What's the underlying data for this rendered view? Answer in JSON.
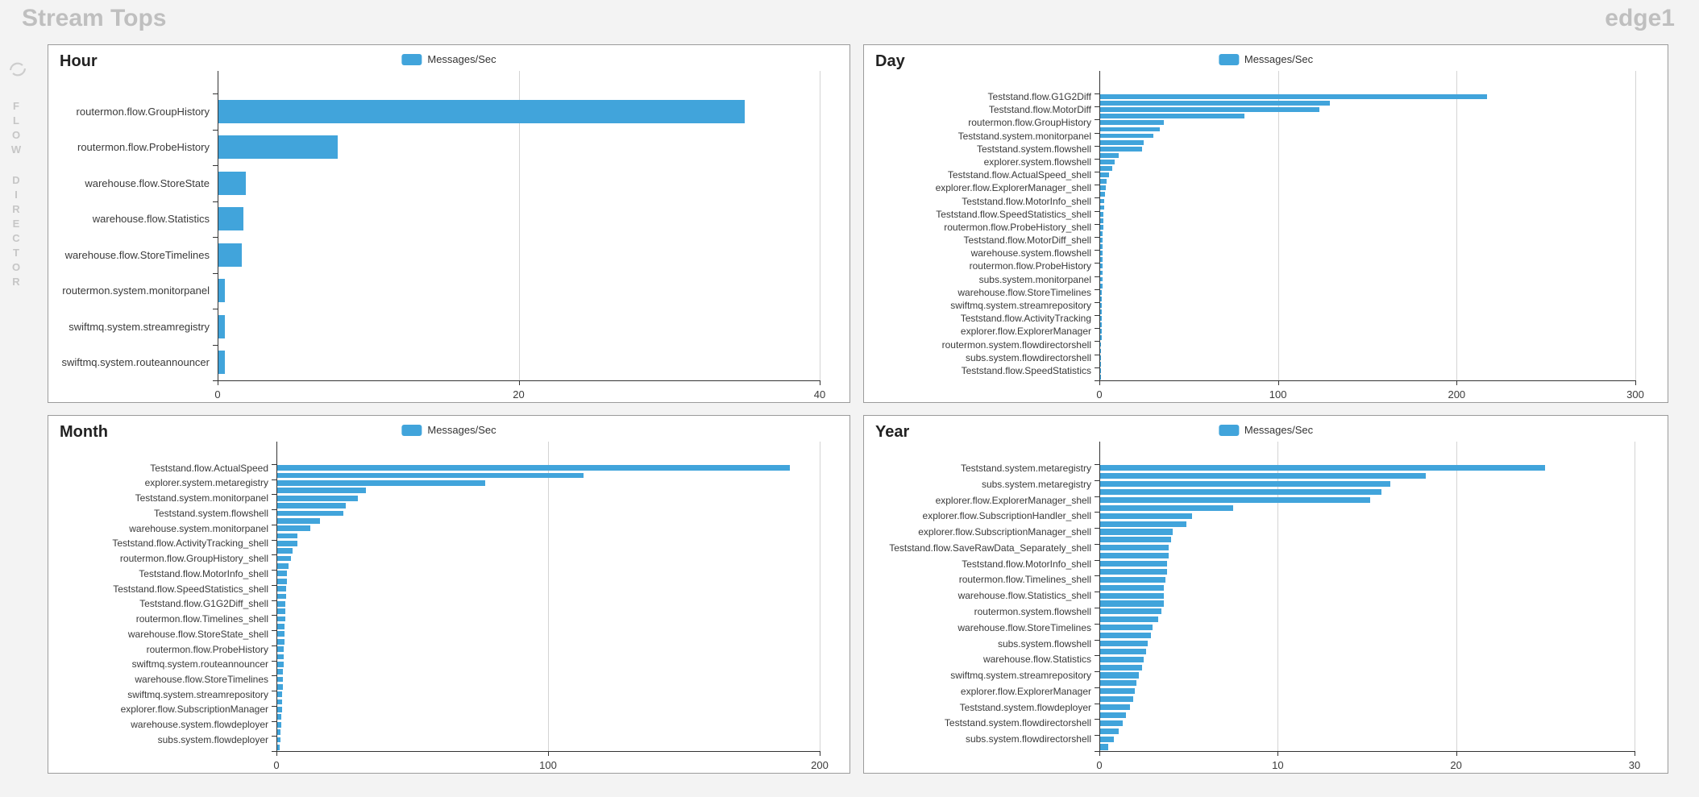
{
  "page": {
    "title": "Stream Tops",
    "node": "edge1",
    "sidebar": {
      "word_top": "FLOW",
      "word_bottom": "DIRECTOR"
    },
    "colors": {
      "bar_blue": "#41A4DB",
      "page_background": "#f3f3f3",
      "panel_border": "#9b9b9b",
      "axis": "#333333",
      "gridline": "#d4d4d4",
      "muted_title_text": "#bfbfbf"
    }
  },
  "chart_data": [
    {
      "id": "hour",
      "type": "bar",
      "orientation": "horizontal",
      "title": "Hour",
      "legend": "Messages/Sec",
      "xlabel": "",
      "ylabel": "",
      "x_ticks": [
        0,
        20,
        40
      ],
      "xlim": [
        0,
        40
      ],
      "grid": true,
      "legend_position": "top-center",
      "bars_per_label": 1,
      "categories": [
        "routermon.flow.GroupHistory",
        "routermon.flow.ProbeHistory",
        "warehouse.flow.StoreState",
        "warehouse.flow.Statistics",
        "warehouse.flow.StoreTimelines",
        "routermon.system.monitorpanel",
        "swiftmq.system.streamregistry",
        "swiftmq.system.routeannouncer"
      ],
      "values": [
        35,
        8,
        1.9,
        1.7,
        1.6,
        0.5,
        0.5,
        0.5
      ]
    },
    {
      "id": "day",
      "type": "bar",
      "orientation": "horizontal",
      "title": "Day",
      "legend": "Messages/Sec",
      "xlabel": "",
      "ylabel": "",
      "x_ticks": [
        0,
        100,
        200,
        300
      ],
      "xlim": [
        0,
        300
      ],
      "grid": true,
      "legend_position": "top-center",
      "bars_per_label": 2,
      "categories": [
        "Teststand.flow.G1G2Diff",
        "Teststand.flow.MotorDiff",
        "routermon.flow.GroupHistory",
        "Teststand.system.monitorpanel",
        "Teststand.system.flowshell",
        "explorer.system.flowshell",
        "Teststand.flow.ActualSpeed_shell",
        "explorer.flow.ExplorerManager_shell",
        "Teststand.flow.MotorInfo_shell",
        "Teststand.flow.SpeedStatistics_shell",
        "routermon.flow.ProbeHistory_shell",
        "Teststand.flow.MotorDiff_shell",
        "warehouse.system.flowshell",
        "routermon.flow.ProbeHistory",
        "subs.system.monitorpanel",
        "warehouse.flow.StoreTimelines",
        "swiftmq.system.streamrepository",
        "Teststand.flow.ActivityTracking",
        "explorer.flow.ExplorerManager",
        "routermon.system.flowdirectorshell",
        "subs.system.flowdirectorshell",
        "Teststand.flow.SpeedStatistics"
      ],
      "values": [
        217,
        129,
        123,
        81,
        36,
        34,
        30,
        25,
        24,
        11,
        8.5,
        7.2,
        5.4,
        4.2,
        3.4,
        3.0,
        2.7,
        2.5,
        2.3,
        2.2,
        2.1,
        2.0,
        1.9,
        1.9,
        1.8,
        1.8,
        1.7,
        1.7,
        1.6,
        1.6,
        1.5,
        1.5,
        1.4,
        1.4,
        1.3,
        1.3,
        1.2,
        1.2,
        1.1,
        1.1,
        1.0,
        1.0,
        0.9,
        0.8
      ]
    },
    {
      "id": "month",
      "type": "bar",
      "orientation": "horizontal",
      "title": "Month",
      "legend": "Messages/Sec",
      "xlabel": "",
      "ylabel": "",
      "x_ticks": [
        0,
        100,
        200
      ],
      "xlim": [
        0,
        200
      ],
      "grid": true,
      "legend_position": "top-center",
      "bars_per_label": 2,
      "categories": [
        "Teststand.flow.ActualSpeed",
        "explorer.system.metaregistry",
        "Teststand.system.monitorpanel",
        "Teststand.system.flowshell",
        "warehouse.system.monitorpanel",
        "Teststand.flow.ActivityTracking_shell",
        "routermon.flow.GroupHistory_shell",
        "Teststand.flow.MotorInfo_shell",
        "Teststand.flow.SpeedStatistics_shell",
        "Teststand.flow.G1G2Diff_shell",
        "routermon.flow.Timelines_shell",
        "warehouse.flow.StoreState_shell",
        "routermon.flow.ProbeHistory",
        "swiftmq.system.routeannouncer",
        "warehouse.flow.StoreTimelines",
        "swiftmq.system.streamrepository",
        "explorer.flow.SubscriptionManager",
        "warehouse.system.flowdeployer",
        "subs.system.flowdeployer"
      ],
      "values": [
        189,
        113,
        77,
        33,
        30,
        25.5,
        24.5,
        16,
        12.5,
        7.7,
        7.6,
        5.9,
        5.3,
        4.4,
        3.9,
        3.8,
        3.6,
        3.5,
        3.4,
        3.3,
        3.2,
        3.1,
        3.0,
        2.9,
        2.8,
        2.7,
        2.6,
        2.5,
        2.4,
        2.3,
        2.2,
        2.1,
        2.0,
        1.9,
        1.8,
        1.6,
        1.4,
        1.2
      ]
    },
    {
      "id": "year",
      "type": "bar",
      "orientation": "horizontal",
      "title": "Year",
      "legend": "Messages/Sec",
      "xlabel": "",
      "ylabel": "",
      "x_ticks": [
        0,
        10,
        20,
        30
      ],
      "xlim": [
        0,
        30
      ],
      "grid": true,
      "legend_position": "top-center",
      "bars_per_label": 2,
      "categories": [
        "Teststand.system.metaregistry",
        "subs.system.metaregistry",
        "explorer.flow.ExplorerManager_shell",
        "explorer.flow.SubscriptionHandler_shell",
        "explorer.flow.SubscriptionManager_shell",
        "Teststand.flow.SaveRawData_Separately_shell",
        "Teststand.flow.MotorInfo_shell",
        "routermon.flow.Timelines_shell",
        "warehouse.flow.Statistics_shell",
        "routermon.system.flowshell",
        "warehouse.flow.StoreTimelines",
        "subs.system.flowshell",
        "warehouse.flow.Statistics",
        "swiftmq.system.streamrepository",
        "explorer.flow.ExplorerManager",
        "Teststand.system.flowdeployer",
        "Teststand.system.flowdirectorshell",
        "subs.system.flowdirectorshell"
      ],
      "values": [
        25,
        18.3,
        16.3,
        15.8,
        15.2,
        7.5,
        5.2,
        4.9,
        4.1,
        4.0,
        3.9,
        3.9,
        3.8,
        3.8,
        3.7,
        3.6,
        3.6,
        3.6,
        3.5,
        3.3,
        3.0,
        2.9,
        2.7,
        2.6,
        2.5,
        2.4,
        2.2,
        2.1,
        2.0,
        1.9,
        1.7,
        1.5,
        1.3,
        1.1,
        0.8,
        0.5
      ]
    }
  ]
}
